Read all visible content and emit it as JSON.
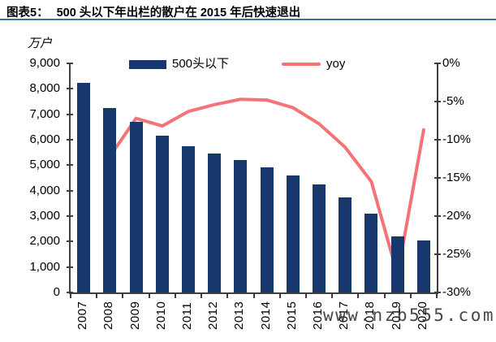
{
  "header": {
    "fig_label": "图表5：",
    "title": "500 头以下年出栏的散户在 2015 年后快速退出",
    "underline_color": "#2E75B6"
  },
  "watermark": "www.nzb555.com",
  "chart_data": {
    "type": "bar",
    "subtype": "bar+line dual-axis",
    "title": "500 头以下年出栏的散户在 2015 年后快速退出",
    "categories": [
      "2007",
      "2008",
      "2009",
      "2010",
      "2011",
      "2012",
      "2013",
      "2014",
      "2015",
      "2016",
      "2017",
      "2018",
      "2019",
      "2020"
    ],
    "series": [
      {
        "name": "500头以下",
        "type": "bar",
        "axis": "left",
        "color": "#17386D",
        "values": [
          8250,
          7250,
          6700,
          6150,
          5750,
          5450,
          5200,
          4900,
          4600,
          4250,
          3750,
          3100,
          2200,
          2050
        ]
      },
      {
        "name": "yoy",
        "type": "line",
        "axis": "right",
        "color": "#F47376",
        "values": [
          null,
          -12.2,
          -7.2,
          -8.2,
          -6.3,
          -5.4,
          -4.7,
          -4.8,
          -5.8,
          -7.9,
          -11.0,
          -15.5,
          -27.7,
          -8.7
        ]
      }
    ],
    "left_axis": {
      "title": "万户",
      "min": 0,
      "max": 9000,
      "step": 1000,
      "ticks": [
        "9,000",
        "8,000",
        "7,000",
        "6,000",
        "5,000",
        "4,000",
        "3,000",
        "2,000",
        "1,000",
        "0"
      ]
    },
    "right_axis": {
      "title": "",
      "min": -30,
      "max": 0,
      "step": -5,
      "ticks": [
        "0%",
        "-5%",
        "-10%",
        "-15%",
        "-20%",
        "-25%",
        "-30%"
      ]
    },
    "legend": {
      "position": "top-inside",
      "items": [
        {
          "label": "500头以下",
          "marker": "bar"
        },
        {
          "label": "yoy",
          "marker": "line"
        }
      ]
    },
    "grid": false,
    "axis_color": "#3f3f3f"
  }
}
